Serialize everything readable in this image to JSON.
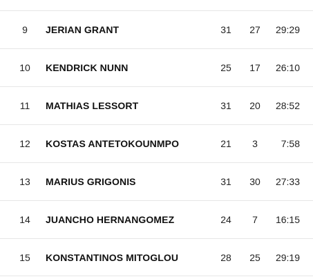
{
  "players": [
    {
      "number": "9",
      "name": "JERIAN GRANT",
      "stat1": "31",
      "stat2": "27",
      "minutes": "29:29"
    },
    {
      "number": "10",
      "name": "KENDRICK NUNN",
      "stat1": "25",
      "stat2": "17",
      "minutes": "26:10"
    },
    {
      "number": "11",
      "name": "MATHIAS LESSORT",
      "stat1": "31",
      "stat2": "20",
      "minutes": "28:52"
    },
    {
      "number": "12",
      "name": "KOSTAS ANTETOKOUNMPO",
      "stat1": "21",
      "stat2": "3",
      "minutes": "7:58"
    },
    {
      "number": "13",
      "name": "MARIUS GRIGONIS",
      "stat1": "31",
      "stat2": "30",
      "minutes": "27:33"
    },
    {
      "number": "14",
      "name": "JUANCHO HERNANGOMEZ",
      "stat1": "24",
      "stat2": "7",
      "minutes": "16:15"
    },
    {
      "number": "15",
      "name": "KONSTANTINOS MITOGLOU",
      "stat1": "28",
      "stat2": "25",
      "minutes": "29:19"
    }
  ]
}
